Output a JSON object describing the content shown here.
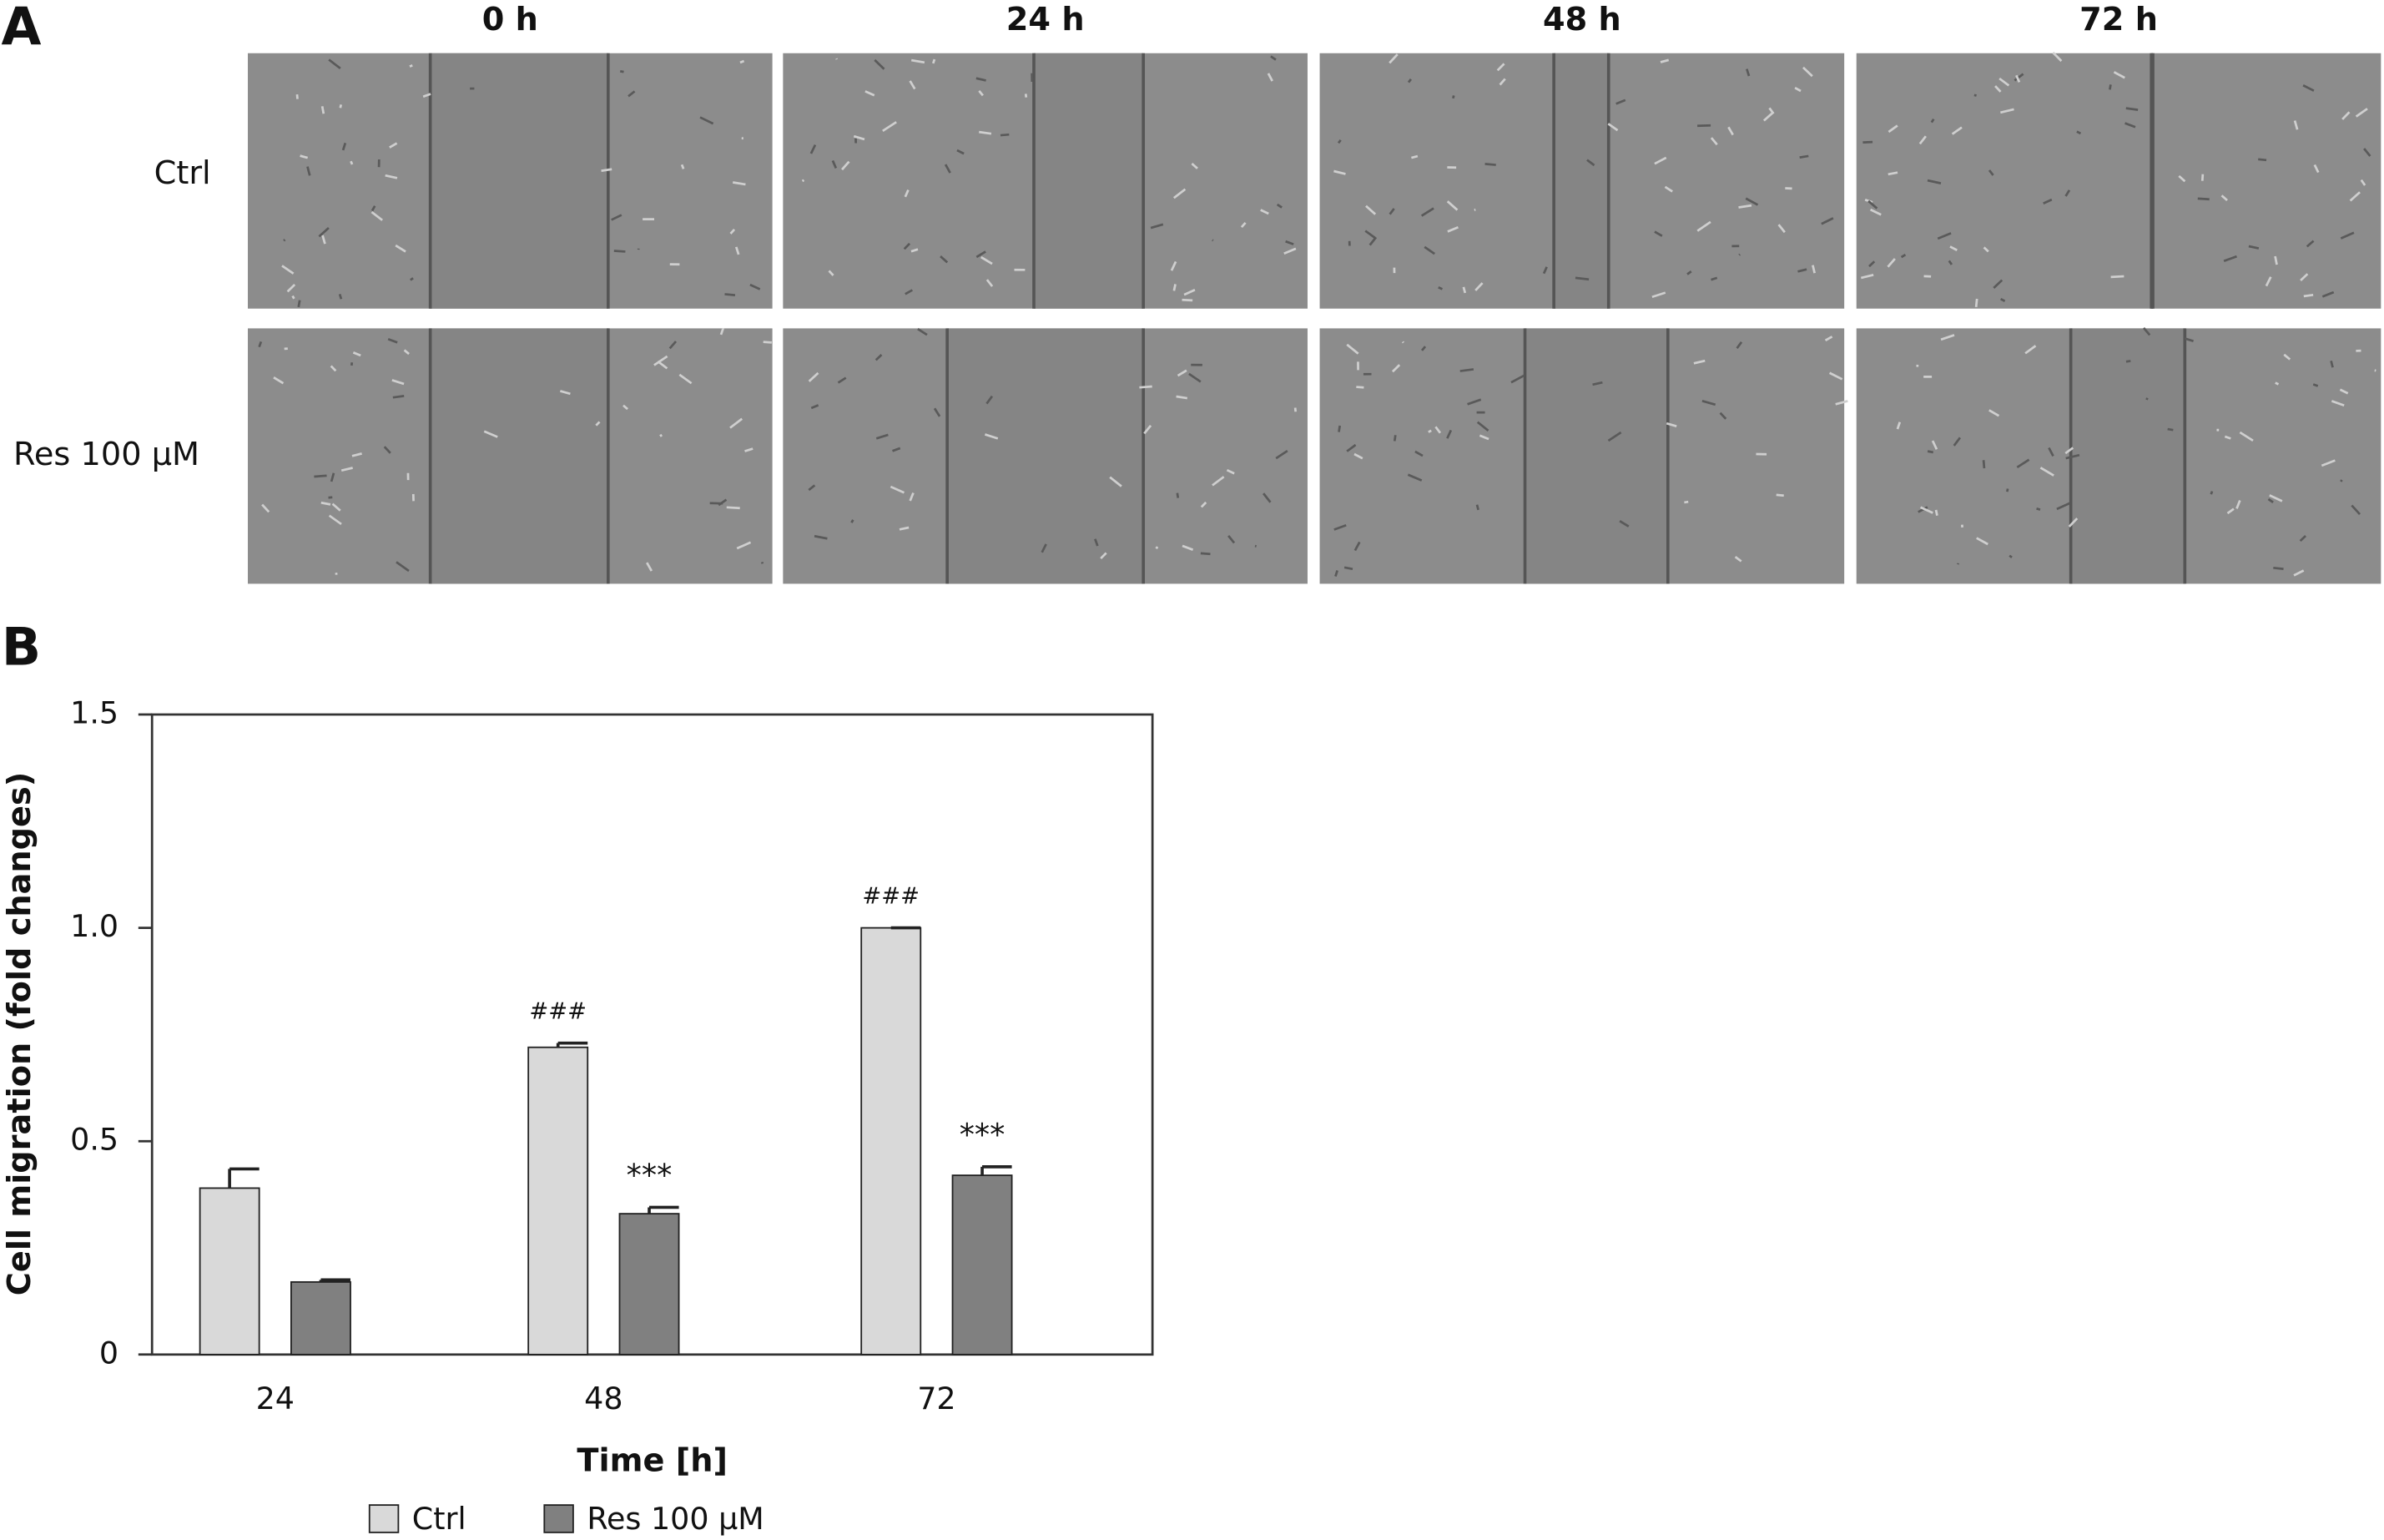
{
  "panel_a": {
    "label": "A",
    "columns": [
      "0 h",
      "24 h",
      "48 h",
      "72 h"
    ],
    "rows": [
      "Ctrl",
      "Res 100 µM"
    ]
  },
  "chart_data": {
    "type": "bar",
    "panel_label": "B",
    "x_label": "Time [h]",
    "y_label": "Cell migration (fold changes)",
    "categories": [
      "24",
      "48",
      "72"
    ],
    "series": [
      {
        "name": "Ctrl",
        "color": "#d9d9d9",
        "values": [
          0.39,
          0.72,
          1.0
        ],
        "errors": [
          0.045,
          0.01,
          0
        ],
        "annotations": [
          null,
          "###",
          "###"
        ]
      },
      {
        "name": "Res 100 µM",
        "color": "#808080",
        "values": [
          0.17,
          0.33,
          0.42
        ],
        "errors": [
          0.005,
          0.015,
          0.02
        ],
        "annotations": [
          null,
          "***",
          "***"
        ]
      }
    ],
    "ylim": [
      0,
      1.5
    ],
    "yticks": [
      0,
      0.5,
      {
        "value": 1,
        "label": "1.0"
      },
      1.5
    ],
    "legend": "bottom"
  }
}
